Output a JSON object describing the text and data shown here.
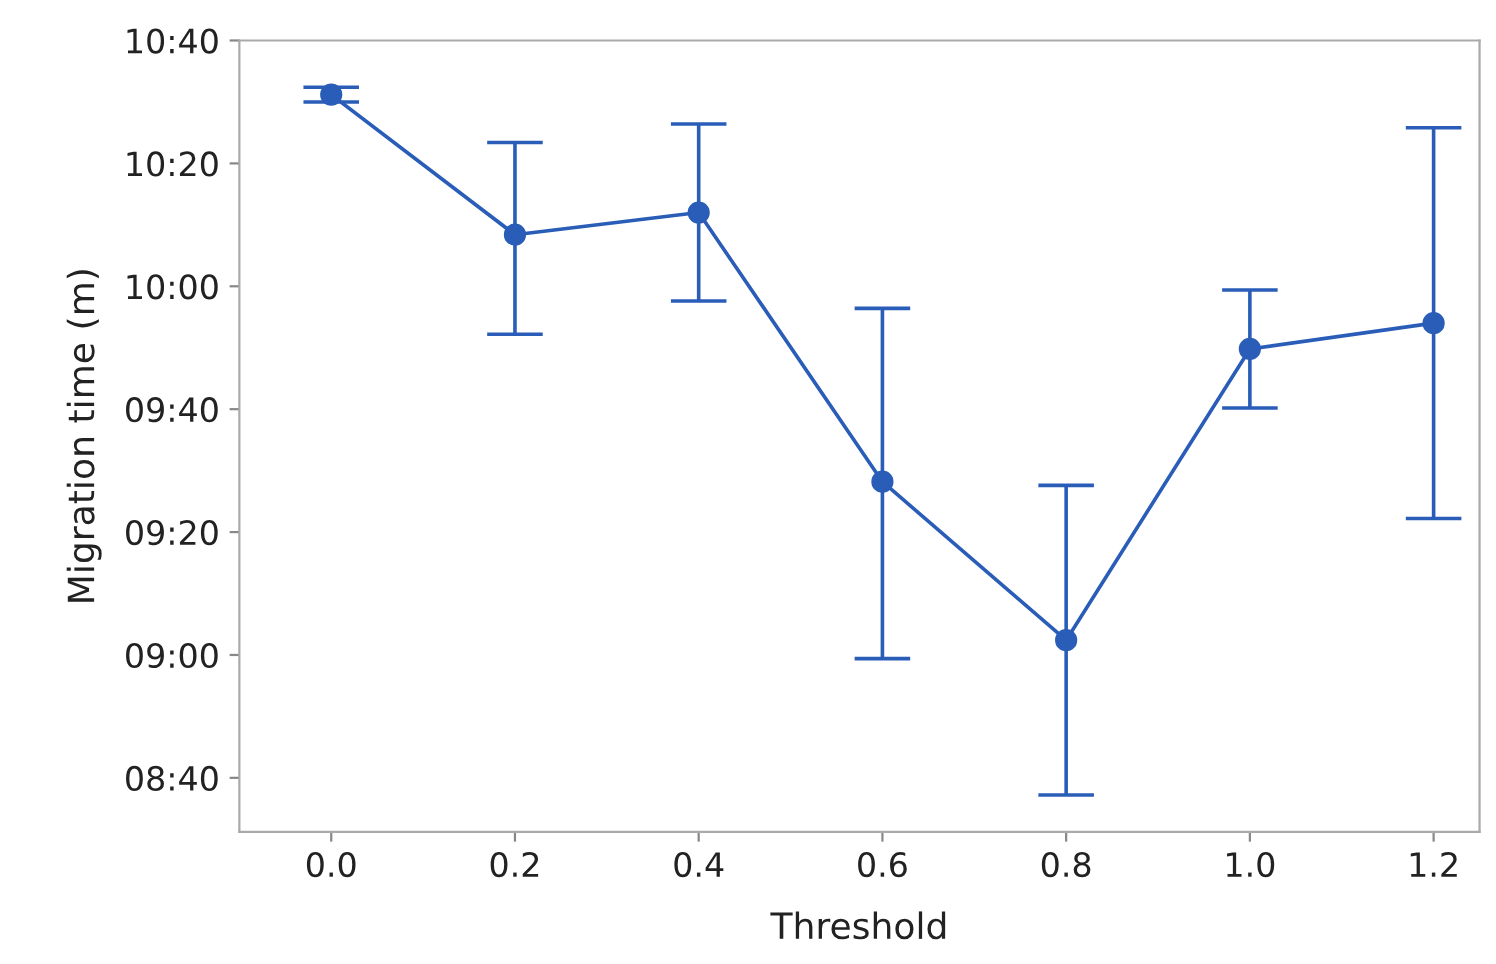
{
  "chart_data": {
    "type": "line",
    "xlabel": "Threshold",
    "ylabel": "Migration time (m)",
    "x": [
      0.0,
      0.2,
      0.4,
      0.6,
      0.8,
      1.0,
      1.2
    ],
    "series": [
      {
        "color": "#2a5db8",
        "values": [
          10.52,
          10.14,
          10.2,
          9.47,
          9.04,
          9.83,
          9.9
        ],
        "errors": [
          [
            10.5,
            10.54
          ],
          [
            9.87,
            10.39
          ],
          [
            9.96,
            10.44
          ],
          [
            8.99,
            9.94
          ],
          [
            8.62,
            9.46
          ],
          [
            9.67,
            9.99
          ],
          [
            9.37,
            10.43
          ]
        ]
      }
    ],
    "xlim": [
      -0.1,
      1.25
    ],
    "xticks": [
      {
        "value": 0,
        "label": "0.0"
      },
      0.2,
      0.4,
      0.6,
      0.8,
      {
        "value": 1,
        "label": "1.0"
      },
      1.2
    ],
    "ylim": [
      8.52,
      10.6667
    ],
    "yticks": [
      {
        "value": 8.6667,
        "label": "08:40"
      },
      {
        "value": 9.0,
        "label": "09:00"
      },
      {
        "value": 9.3333,
        "label": "09:20"
      },
      {
        "value": 9.6667,
        "label": "09:40"
      },
      {
        "value": 10.0,
        "label": "10:00"
      },
      {
        "value": 10.3333,
        "label": "10:20"
      },
      {
        "value": 10.6667,
        "label": "10:40"
      }
    ],
    "marker": "circle",
    "line_style": "solid",
    "grid": false
  }
}
